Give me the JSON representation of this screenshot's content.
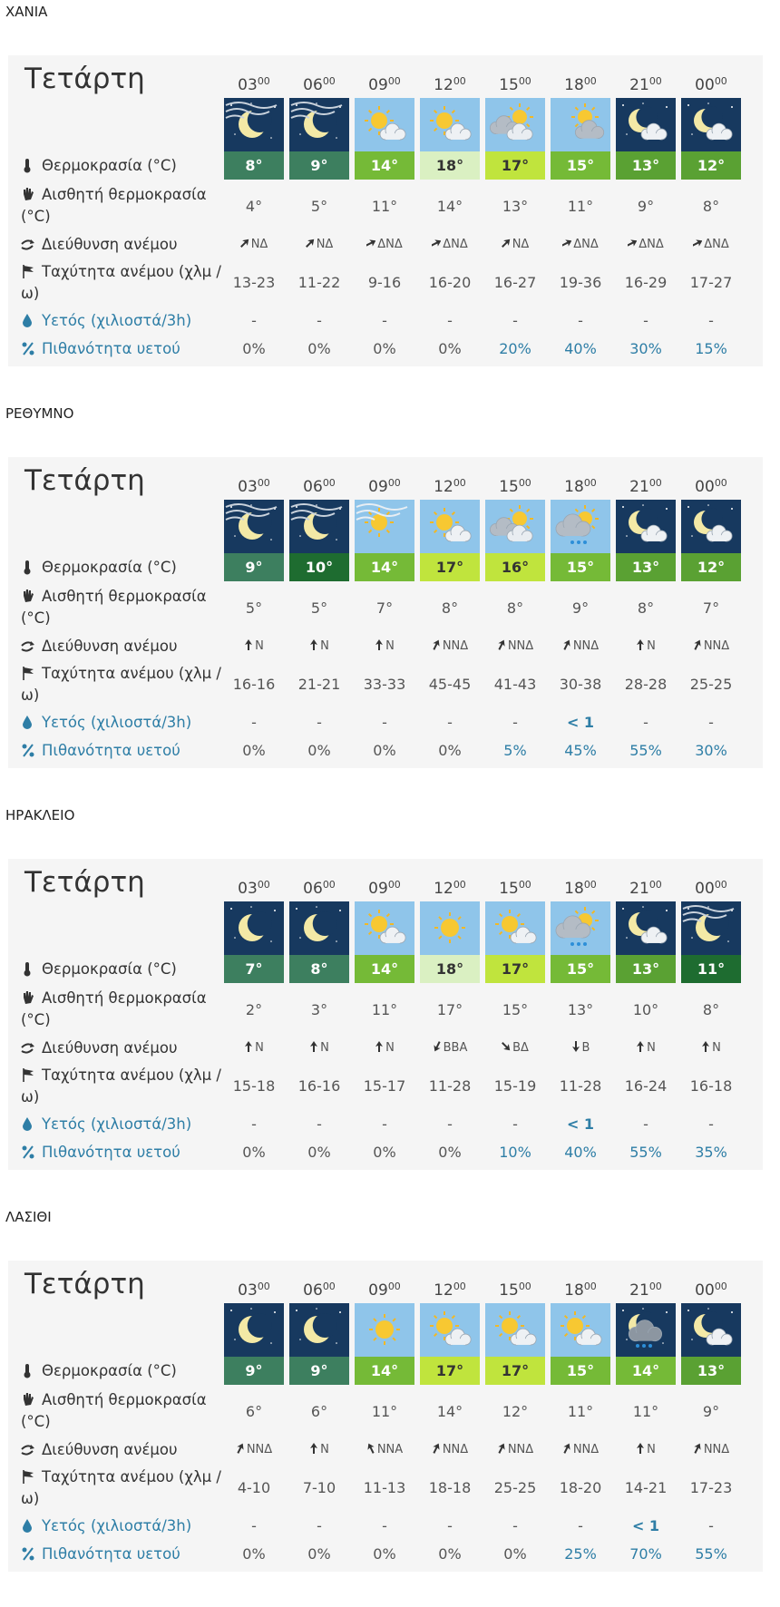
{
  "sections": [
    {
      "region": "ΧΑΝΙΑ",
      "day": "Τετάρτη",
      "hours": [
        {
          "h": "03",
          "m": "00"
        },
        {
          "h": "06",
          "m": "00"
        },
        {
          "h": "09",
          "m": "00"
        },
        {
          "h": "12",
          "m": "00"
        },
        {
          "h": "15",
          "m": "00"
        },
        {
          "h": "18",
          "m": "00"
        },
        {
          "h": "21",
          "m": "00"
        },
        {
          "h": "00",
          "m": "00"
        }
      ],
      "labels": {
        "temperature": "Θερμοκρασία (°C)",
        "feels": "Αισθητή θερμοκρασία (°C)",
        "wind_dir": "Διεύθυνση ανέμου",
        "wind_speed": "Ταχύτητα ανέμου (χλμ / ω)",
        "rain": "Υετός (χιλιοστά/3h)",
        "rain_prob": "Πιθανότητα υετού"
      },
      "temperature": {
        "values": [
          8,
          9,
          14,
          18,
          17,
          15,
          13,
          12
        ],
        "value_labels": [
          "8°",
          "9°",
          "14°",
          "18°",
          "17°",
          "15°",
          "13°",
          "12°"
        ]
      },
      "feels": {
        "values": [
          4,
          5,
          11,
          14,
          13,
          11,
          9,
          8
        ],
        "value_labels": [
          "4°",
          "5°",
          "11°",
          "14°",
          "13°",
          "11°",
          "9°",
          "8°"
        ]
      },
      "wind_dir": [
        "ΝΔ",
        "ΝΔ",
        "ΔΝΔ",
        "ΔΝΔ",
        "ΝΔ",
        "ΔΝΔ",
        "ΔΝΔ",
        "ΔΝΔ"
      ],
      "wind_speed": [
        "13-23",
        "11-22",
        "9-16",
        "16-20",
        "16-27",
        "19-36",
        "16-29",
        "17-27"
      ],
      "rain": [
        "-",
        "-",
        "-",
        "-",
        "-",
        "-",
        "-",
        "-"
      ],
      "rain_prob": {
        "values": [
          0,
          0,
          0,
          0,
          20,
          40,
          30,
          15
        ],
        "value_labels": [
          "0%",
          "0%",
          "0%",
          "0%",
          "20%",
          "40%",
          "30%",
          "15%"
        ]
      }
    },
    {
      "region": "ΡΕΘΥΜΝΟ",
      "day": "Τετάρτη",
      "hours": [
        {
          "h": "03",
          "m": "00"
        },
        {
          "h": "06",
          "m": "00"
        },
        {
          "h": "09",
          "m": "00"
        },
        {
          "h": "12",
          "m": "00"
        },
        {
          "h": "15",
          "m": "00"
        },
        {
          "h": "18",
          "m": "00"
        },
        {
          "h": "21",
          "m": "00"
        },
        {
          "h": "00",
          "m": "00"
        }
      ],
      "labels": {
        "temperature": "Θερμοκρασία (°C)",
        "feels": "Αισθητή θερμοκρασία (°C)",
        "wind_dir": "Διεύθυνση ανέμου",
        "wind_speed": "Ταχύτητα ανέμου (χλμ / ω)",
        "rain": "Υετός (χιλιοστά/3h)",
        "rain_prob": "Πιθανότητα υετού"
      },
      "temperature": {
        "values": [
          9,
          10,
          14,
          17,
          16,
          15,
          13,
          12
        ],
        "value_labels": [
          "9°",
          "10°",
          "14°",
          "17°",
          "16°",
          "15°",
          "13°",
          "12°"
        ]
      },
      "feels": {
        "values": [
          5,
          5,
          7,
          8,
          8,
          9,
          8,
          7
        ],
        "value_labels": [
          "5°",
          "5°",
          "7°",
          "8°",
          "8°",
          "9°",
          "8°",
          "7°"
        ]
      },
      "wind_dir": [
        "Ν",
        "Ν",
        "Ν",
        "ΝΝΔ",
        "ΝΝΔ",
        "ΝΝΔ",
        "Ν",
        "ΝΝΔ"
      ],
      "wind_speed": [
        "16-16",
        "21-21",
        "33-33",
        "45-45",
        "41-43",
        "30-38",
        "28-28",
        "25-25"
      ],
      "rain": [
        "-",
        "-",
        "-",
        "-",
        "-",
        "< 1",
        "-",
        "-"
      ],
      "rain_prob": {
        "values": [
          0,
          0,
          0,
          0,
          5,
          45,
          55,
          30
        ],
        "value_labels": [
          "0%",
          "0%",
          "0%",
          "0%",
          "5%",
          "45%",
          "55%",
          "30%"
        ]
      }
    },
    {
      "region": "ΗΡΑΚΛΕΙΟ",
      "day": "Τετάρτη",
      "hours": [
        {
          "h": "03",
          "m": "00"
        },
        {
          "h": "06",
          "m": "00"
        },
        {
          "h": "09",
          "m": "00"
        },
        {
          "h": "12",
          "m": "00"
        },
        {
          "h": "15",
          "m": "00"
        },
        {
          "h": "18",
          "m": "00"
        },
        {
          "h": "21",
          "m": "00"
        },
        {
          "h": "00",
          "m": "00"
        }
      ],
      "labels": {
        "temperature": "Θερμοκρασία (°C)",
        "feels": "Αισθητή θερμοκρασία (°C)",
        "wind_dir": "Διεύθυνση ανέμου",
        "wind_speed": "Ταχύτητα ανέμου (χλμ / ω)",
        "rain": "Υετός (χιλιοστά/3h)",
        "rain_prob": "Πιθανότητα υετού"
      },
      "temperature": {
        "values": [
          7,
          8,
          14,
          18,
          17,
          15,
          13,
          11
        ],
        "value_labels": [
          "7°",
          "8°",
          "14°",
          "18°",
          "17°",
          "15°",
          "13°",
          "11°"
        ]
      },
      "feels": {
        "values": [
          2,
          3,
          11,
          17,
          15,
          13,
          10,
          8
        ],
        "value_labels": [
          "2°",
          "3°",
          "11°",
          "17°",
          "15°",
          "13°",
          "10°",
          "8°"
        ]
      },
      "wind_dir": [
        "Ν",
        "Ν",
        "Ν",
        "ΒΒΑ",
        "ΒΔ",
        "Β",
        "Ν",
        "Ν"
      ],
      "wind_speed": [
        "15-18",
        "16-16",
        "15-17",
        "11-28",
        "15-19",
        "11-28",
        "16-24",
        "16-18"
      ],
      "rain": [
        "-",
        "-",
        "-",
        "-",
        "-",
        "< 1",
        "-",
        "-"
      ],
      "rain_prob": {
        "values": [
          0,
          0,
          0,
          0,
          10,
          40,
          55,
          35
        ],
        "value_labels": [
          "0%",
          "0%",
          "0%",
          "0%",
          "10%",
          "40%",
          "55%",
          "35%"
        ]
      }
    },
    {
      "region": "ΛΑΣΙΘΙ",
      "day": "Τετάρτη",
      "hours": [
        {
          "h": "03",
          "m": "00"
        },
        {
          "h": "06",
          "m": "00"
        },
        {
          "h": "09",
          "m": "00"
        },
        {
          "h": "12",
          "m": "00"
        },
        {
          "h": "15",
          "m": "00"
        },
        {
          "h": "18",
          "m": "00"
        },
        {
          "h": "21",
          "m": "00"
        },
        {
          "h": "00",
          "m": "00"
        }
      ],
      "labels": {
        "temperature": "Θερμοκρασία (°C)",
        "feels": "Αισθητή θερμοκρασία (°C)",
        "wind_dir": "Διεύθυνση ανέμου",
        "wind_speed": "Ταχύτητα ανέμου (χλμ / ω)",
        "rain": "Υετός (χιλιοστά/3h)",
        "rain_prob": "Πιθανότητα υετού"
      },
      "temperature": {
        "values": [
          9,
          9,
          14,
          17,
          17,
          15,
          14,
          13
        ],
        "value_labels": [
          "9°",
          "9°",
          "14°",
          "17°",
          "17°",
          "15°",
          "14°",
          "13°"
        ]
      },
      "feels": {
        "values": [
          6,
          6,
          11,
          14,
          12,
          11,
          11,
          9
        ],
        "value_labels": [
          "6°",
          "6°",
          "11°",
          "14°",
          "12°",
          "11°",
          "11°",
          "9°"
        ]
      },
      "wind_dir": [
        "ΝΝΔ",
        "Ν",
        "ΝΝΑ",
        "ΝΝΔ",
        "ΝΝΔ",
        "ΝΝΔ",
        "Ν",
        "ΝΝΔ"
      ],
      "wind_speed": [
        "4-10",
        "7-10",
        "11-13",
        "18-18",
        "25-25",
        "18-20",
        "14-21",
        "17-23"
      ],
      "rain": [
        "-",
        "-",
        "-",
        "-",
        "-",
        "-",
        "< 1",
        "-"
      ],
      "rain_prob": {
        "values": [
          0,
          0,
          0,
          0,
          0,
          25,
          70,
          55
        ],
        "value_labels": [
          "0%",
          "0%",
          "0%",
          "0%",
          "0%",
          "25%",
          "70%",
          "55%"
        ]
      }
    }
  ]
}
